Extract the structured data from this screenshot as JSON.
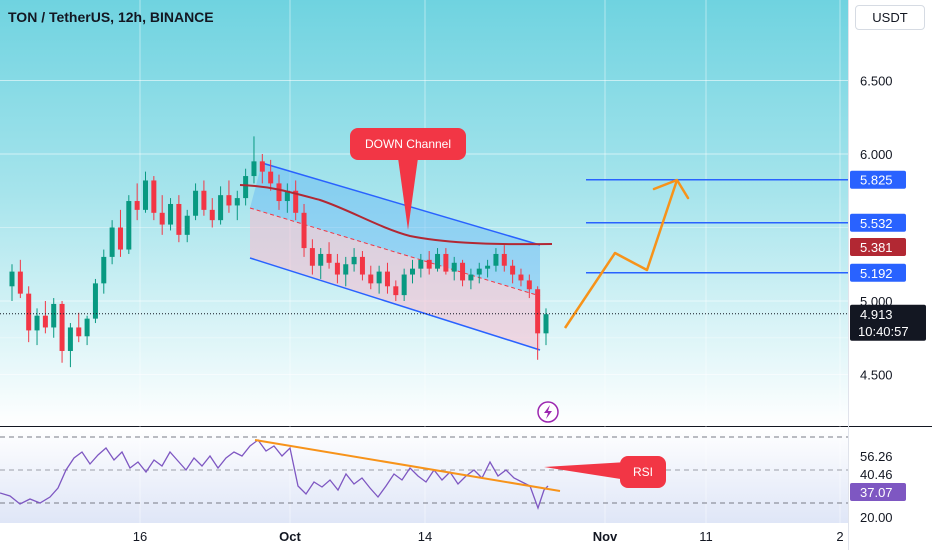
{
  "header": {
    "symbol_title": "TON / TetherUS, 12h, BINANCE",
    "currency_button": "USDT"
  },
  "chart_data": [
    {
      "type": "candlestick",
      "title": "TON / TetherUS, 12h, BINANCE",
      "price_axis_ticks": [
        "6.500",
        "6.000",
        "5.000",
        "4.500"
      ],
      "ylim": [
        4.25,
        6.95
      ],
      "time_axis_ticks": [
        "16",
        "Oct",
        "14",
        "Nov",
        "11",
        "2"
      ],
      "grid": true,
      "current_price": {
        "value": 4.913,
        "label": "4.913",
        "countdown": "10:40:57",
        "color": "#131722"
      },
      "level_lines": [
        {
          "value": 5.825,
          "label": "5.825",
          "color": "#2962ff"
        },
        {
          "value": 5.532,
          "label": "5.532",
          "color": "#2962ff"
        },
        {
          "value": 5.192,
          "label": "5.192",
          "color": "#2962ff"
        }
      ],
      "moving_average_label": {
        "value": 5.381,
        "label": "5.381",
        "color": "#b22833"
      },
      "annotations": [
        {
          "text": "DOWN Channel",
          "color": "#f23645"
        }
      ],
      "up_color": "#089981",
      "down_color": "#f23645",
      "candles": [
        [
          5.1,
          5.25,
          5.0,
          5.2
        ],
        [
          5.2,
          5.28,
          5.02,
          5.05
        ],
        [
          5.05,
          5.1,
          4.72,
          4.8
        ],
        [
          4.8,
          4.95,
          4.7,
          4.9
        ],
        [
          4.9,
          5.0,
          4.78,
          4.82
        ],
        [
          4.82,
          5.02,
          4.75,
          4.98
        ],
        [
          4.98,
          5.0,
          4.58,
          4.66
        ],
        [
          4.66,
          4.85,
          4.55,
          4.82
        ],
        [
          4.82,
          4.92,
          4.72,
          4.76
        ],
        [
          4.76,
          4.9,
          4.7,
          4.88
        ],
        [
          4.88,
          5.15,
          4.85,
          5.12
        ],
        [
          5.12,
          5.35,
          5.05,
          5.3
        ],
        [
          5.3,
          5.55,
          5.25,
          5.5
        ],
        [
          5.5,
          5.62,
          5.3,
          5.35
        ],
        [
          5.35,
          5.72,
          5.32,
          5.68
        ],
        [
          5.68,
          5.8,
          5.55,
          5.62
        ],
        [
          5.62,
          5.88,
          5.6,
          5.82
        ],
        [
          5.82,
          5.85,
          5.55,
          5.6
        ],
        [
          5.6,
          5.72,
          5.45,
          5.52
        ],
        [
          5.52,
          5.7,
          5.48,
          5.66
        ],
        [
          5.66,
          5.72,
          5.4,
          5.45
        ],
        [
          5.45,
          5.62,
          5.4,
          5.58
        ],
        [
          5.58,
          5.8,
          5.55,
          5.75
        ],
        [
          5.75,
          5.82,
          5.58,
          5.62
        ],
        [
          5.62,
          5.7,
          5.5,
          5.55
        ],
        [
          5.55,
          5.78,
          5.52,
          5.72
        ],
        [
          5.72,
          5.82,
          5.6,
          5.65
        ],
        [
          5.65,
          5.75,
          5.55,
          5.7
        ],
        [
          5.7,
          5.9,
          5.65,
          5.85
        ],
        [
          5.85,
          6.12,
          5.8,
          5.95
        ],
        [
          5.95,
          6.0,
          5.8,
          5.88
        ],
        [
          5.88,
          5.96,
          5.75,
          5.8
        ],
        [
          5.8,
          5.86,
          5.62,
          5.68
        ],
        [
          5.68,
          5.8,
          5.6,
          5.75
        ],
        [
          5.75,
          5.82,
          5.55,
          5.6
        ],
        [
          5.6,
          5.66,
          5.3,
          5.36
        ],
        [
          5.36,
          5.42,
          5.18,
          5.24
        ],
        [
          5.24,
          5.36,
          5.15,
          5.32
        ],
        [
          5.32,
          5.4,
          5.22,
          5.26
        ],
        [
          5.26,
          5.32,
          5.12,
          5.18
        ],
        [
          5.18,
          5.3,
          5.1,
          5.25
        ],
        [
          5.25,
          5.36,
          5.2,
          5.3
        ],
        [
          5.3,
          5.34,
          5.14,
          5.18
        ],
        [
          5.18,
          5.24,
          5.08,
          5.12
        ],
        [
          5.12,
          5.24,
          5.05,
          5.2
        ],
        [
          5.2,
          5.26,
          5.05,
          5.1
        ],
        [
          5.1,
          5.14,
          5.0,
          5.04
        ],
        [
          5.04,
          5.22,
          5.0,
          5.18
        ],
        [
          5.18,
          5.28,
          5.12,
          5.22
        ],
        [
          5.22,
          5.32,
          5.16,
          5.28
        ],
        [
          5.28,
          5.34,
          5.18,
          5.22
        ],
        [
          5.22,
          5.36,
          5.2,
          5.32
        ],
        [
          5.32,
          5.36,
          5.18,
          5.2
        ],
        [
          5.2,
          5.3,
          5.14,
          5.26
        ],
        [
          5.26,
          5.28,
          5.1,
          5.14
        ],
        [
          5.14,
          5.22,
          5.08,
          5.18
        ],
        [
          5.18,
          5.26,
          5.12,
          5.22
        ],
        [
          5.22,
          5.28,
          5.16,
          5.24
        ],
        [
          5.24,
          5.36,
          5.2,
          5.32
        ],
        [
          5.32,
          5.38,
          5.2,
          5.24
        ],
        [
          5.24,
          5.28,
          5.12,
          5.18
        ],
        [
          5.18,
          5.22,
          5.1,
          5.14
        ],
        [
          5.14,
          5.18,
          5.02,
          5.08
        ],
        [
          5.08,
          5.1,
          4.6,
          4.78
        ],
        [
          4.78,
          4.95,
          4.7,
          4.91
        ]
      ]
    },
    {
      "type": "line",
      "label": "RSI",
      "axis_ticks": [
        "20.00"
      ],
      "value_labels": [
        {
          "label": "56.26",
          "color": "#ffffff",
          "text_color": "#131722"
        },
        {
          "label": "40.46",
          "color": "#ffffff",
          "text_color": "#131722"
        },
        {
          "label": "37.07",
          "color": "#7e57c2",
          "text_color": "#ffffff"
        }
      ],
      "annotations": [
        {
          "text": "RSI",
          "color": "#f23645"
        }
      ],
      "line_color": "#7e57c2",
      "trendline_color": "#f7931a"
    }
  ]
}
